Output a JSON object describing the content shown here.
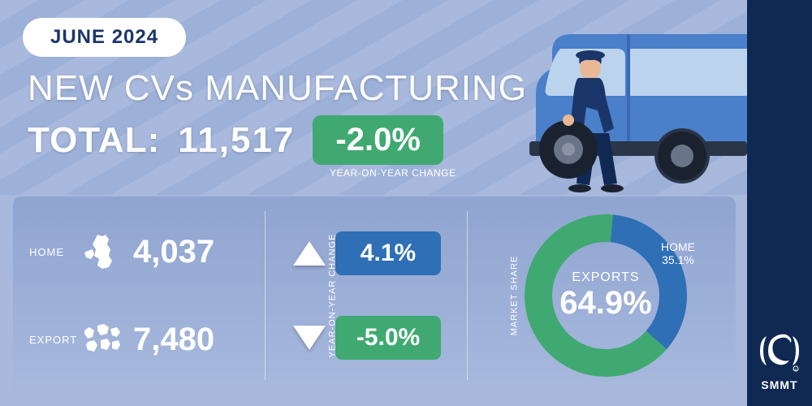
{
  "date_label": "JUNE 2024",
  "headline": "NEW CVs MANUFACTURING",
  "total_label": "TOTAL:",
  "total_value": "11,517",
  "total_change": "-2.0%",
  "total_change_color": "#3fa971",
  "yoy_caption": "YEAR-ON-YEAR CHANGE",
  "home": {
    "label": "HOME",
    "value": "4,037",
    "change": "4.1%",
    "change_direction": "up",
    "change_badge_color": "#2f6fb5"
  },
  "export": {
    "label": "EXPORT",
    "value": "7,480",
    "change": "-5.0%",
    "change_direction": "down",
    "change_badge_color": "#3fa971"
  },
  "yoy_vlabel": "YEAR-ON-YEAR CHANGE",
  "market_share_vlabel": "MARKET SHARE",
  "donut": {
    "exports_label": "EXPORTS",
    "exports_pct_text": "64.9%",
    "exports_pct": 64.9,
    "exports_color": "#3fa971",
    "home_label": "HOME",
    "home_pct_text": "35.1%",
    "home_pct": 35.1,
    "home_color": "#2f6fb5",
    "ring_thickness": 34
  },
  "brand": "SMMT",
  "colors": {
    "bg_light": "#a8b9dd",
    "bg_stripe": "#9cb0d8",
    "sidebar": "#0f2952",
    "navy": "#1a3668",
    "green": "#3fa971",
    "blue": "#2f6fb5",
    "white": "#ffffff"
  }
}
